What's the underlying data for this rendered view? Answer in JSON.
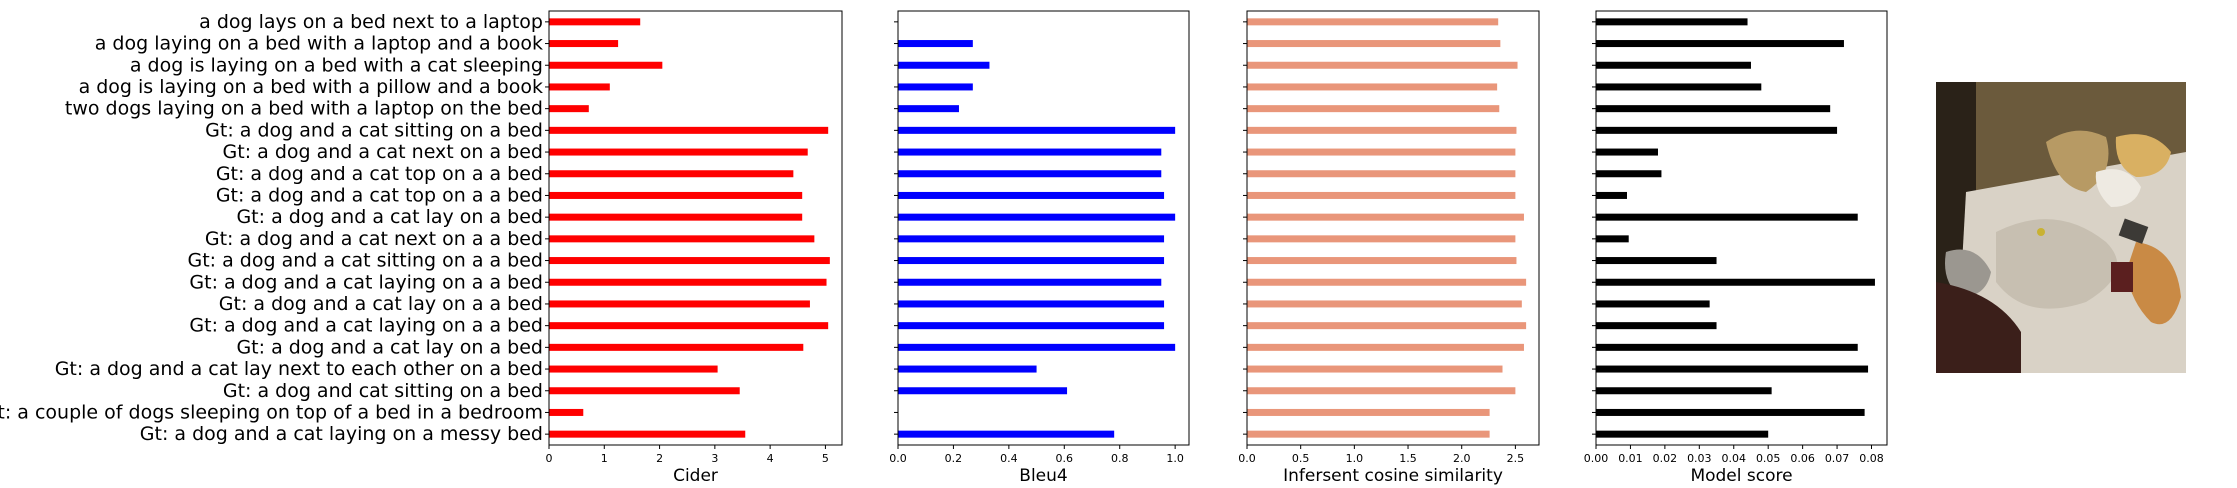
{
  "chart_data": {
    "type": "bar",
    "orientation": "horizontal",
    "categories": [
      "a dog lays on a bed next to a laptop",
      "a dog laying on a bed with a laptop and a book",
      "a dog is laying on a bed with a cat sleeping",
      "a dog is laying on a bed with a pillow and a book",
      "two dogs laying on a bed with a laptop on the bed",
      "Gt: a dog and a cat sitting on a bed",
      "Gt: a dog and a cat next on a bed",
      "Gt: a dog and a cat top on a a bed",
      "Gt: a dog and a cat top on a a bed",
      "Gt: a dog and a cat lay on a bed",
      "Gt: a dog and a cat next on a a bed",
      "Gt: a dog and a cat sitting on a a bed",
      "Gt: a dog and a cat laying on a a bed",
      "Gt: a dog and a cat lay on a a bed",
      "Gt: a dog and a cat laying on a a bed",
      "Gt: a dog and a cat lay on a bed",
      "Gt: a dog and a cat lay next to each other on a bed",
      "Gt: a dog and cat sitting on a bed",
      "Gt: a couple of dogs sleeping on top of a bed in a bedroom",
      "Gt: a dog and a cat laying on a messy bed"
    ],
    "panels": [
      {
        "name": "cider",
        "xlabel": "Cider",
        "color": "#ff0000",
        "xlim": [
          0,
          5.3
        ],
        "ticks": [
          0,
          1,
          2,
          3,
          4,
          5
        ],
        "tick_labels": [
          "0",
          "1",
          "2",
          "3",
          "4",
          "5"
        ],
        "values": [
          1.65,
          1.25,
          2.05,
          1.1,
          0.72,
          5.05,
          4.68,
          4.42,
          4.58,
          4.58,
          4.8,
          5.08,
          5.02,
          4.72,
          5.05,
          4.6,
          3.05,
          3.45,
          0.62,
          3.55
        ]
      },
      {
        "name": "bleu4",
        "xlabel": "Bleu4",
        "color": "#0000ff",
        "xlim": [
          0,
          1.05
        ],
        "ticks": [
          0,
          0.2,
          0.4,
          0.6,
          0.8,
          1.0
        ],
        "tick_labels": [
          "0.0",
          "0.2",
          "0.4",
          "0.6",
          "0.8",
          "1.0"
        ],
        "values": [
          0,
          0.27,
          0.33,
          0.27,
          0.22,
          1.0,
          0.95,
          0.95,
          0.96,
          1.0,
          0.96,
          0.96,
          0.95,
          0.96,
          0.96,
          1.0,
          0.5,
          0.61,
          0,
          0.78
        ]
      },
      {
        "name": "infersent",
        "xlabel": "Infersent cosine similarity",
        "color": "#e9967a",
        "xlim": [
          0,
          2.72
        ],
        "ticks": [
          0,
          0.5,
          1.0,
          1.5,
          2.0,
          2.5
        ],
        "tick_labels": [
          "0.0",
          "0.5",
          "1.0",
          "1.5",
          "2.0",
          "2.5"
        ],
        "values": [
          2.34,
          2.36,
          2.52,
          2.33,
          2.35,
          2.51,
          2.5,
          2.5,
          2.5,
          2.58,
          2.5,
          2.51,
          2.6,
          2.56,
          2.6,
          2.58,
          2.38,
          2.5,
          2.26,
          2.26
        ]
      },
      {
        "name": "model_score",
        "xlabel": "Model score",
        "color": "#000000",
        "xlim": [
          0,
          0.0845
        ],
        "ticks": [
          0,
          0.01,
          0.02,
          0.03,
          0.04,
          0.05,
          0.06,
          0.07,
          0.08
        ],
        "tick_labels": [
          "0.00",
          "0.01",
          "0.02",
          "0.03",
          "0.04",
          "0.05",
          "0.06",
          "0.07",
          "0.08"
        ],
        "values": [
          0.044,
          0.072,
          0.045,
          0.048,
          0.068,
          0.07,
          0.018,
          0.019,
          0.009,
          0.076,
          0.0095,
          0.035,
          0.081,
          0.033,
          0.035,
          0.076,
          0.079,
          0.051,
          0.078,
          0.05
        ]
      }
    ]
  },
  "image": {
    "icon": "bed-photo-icon",
    "colors": {
      "wall": "#6b5a3c",
      "sheet": "#d9d2c6",
      "dog": "#c98a45",
      "pillow": "#d9b062",
      "cat": "#9b9790",
      "blanket": "#3b1f1a"
    }
  }
}
